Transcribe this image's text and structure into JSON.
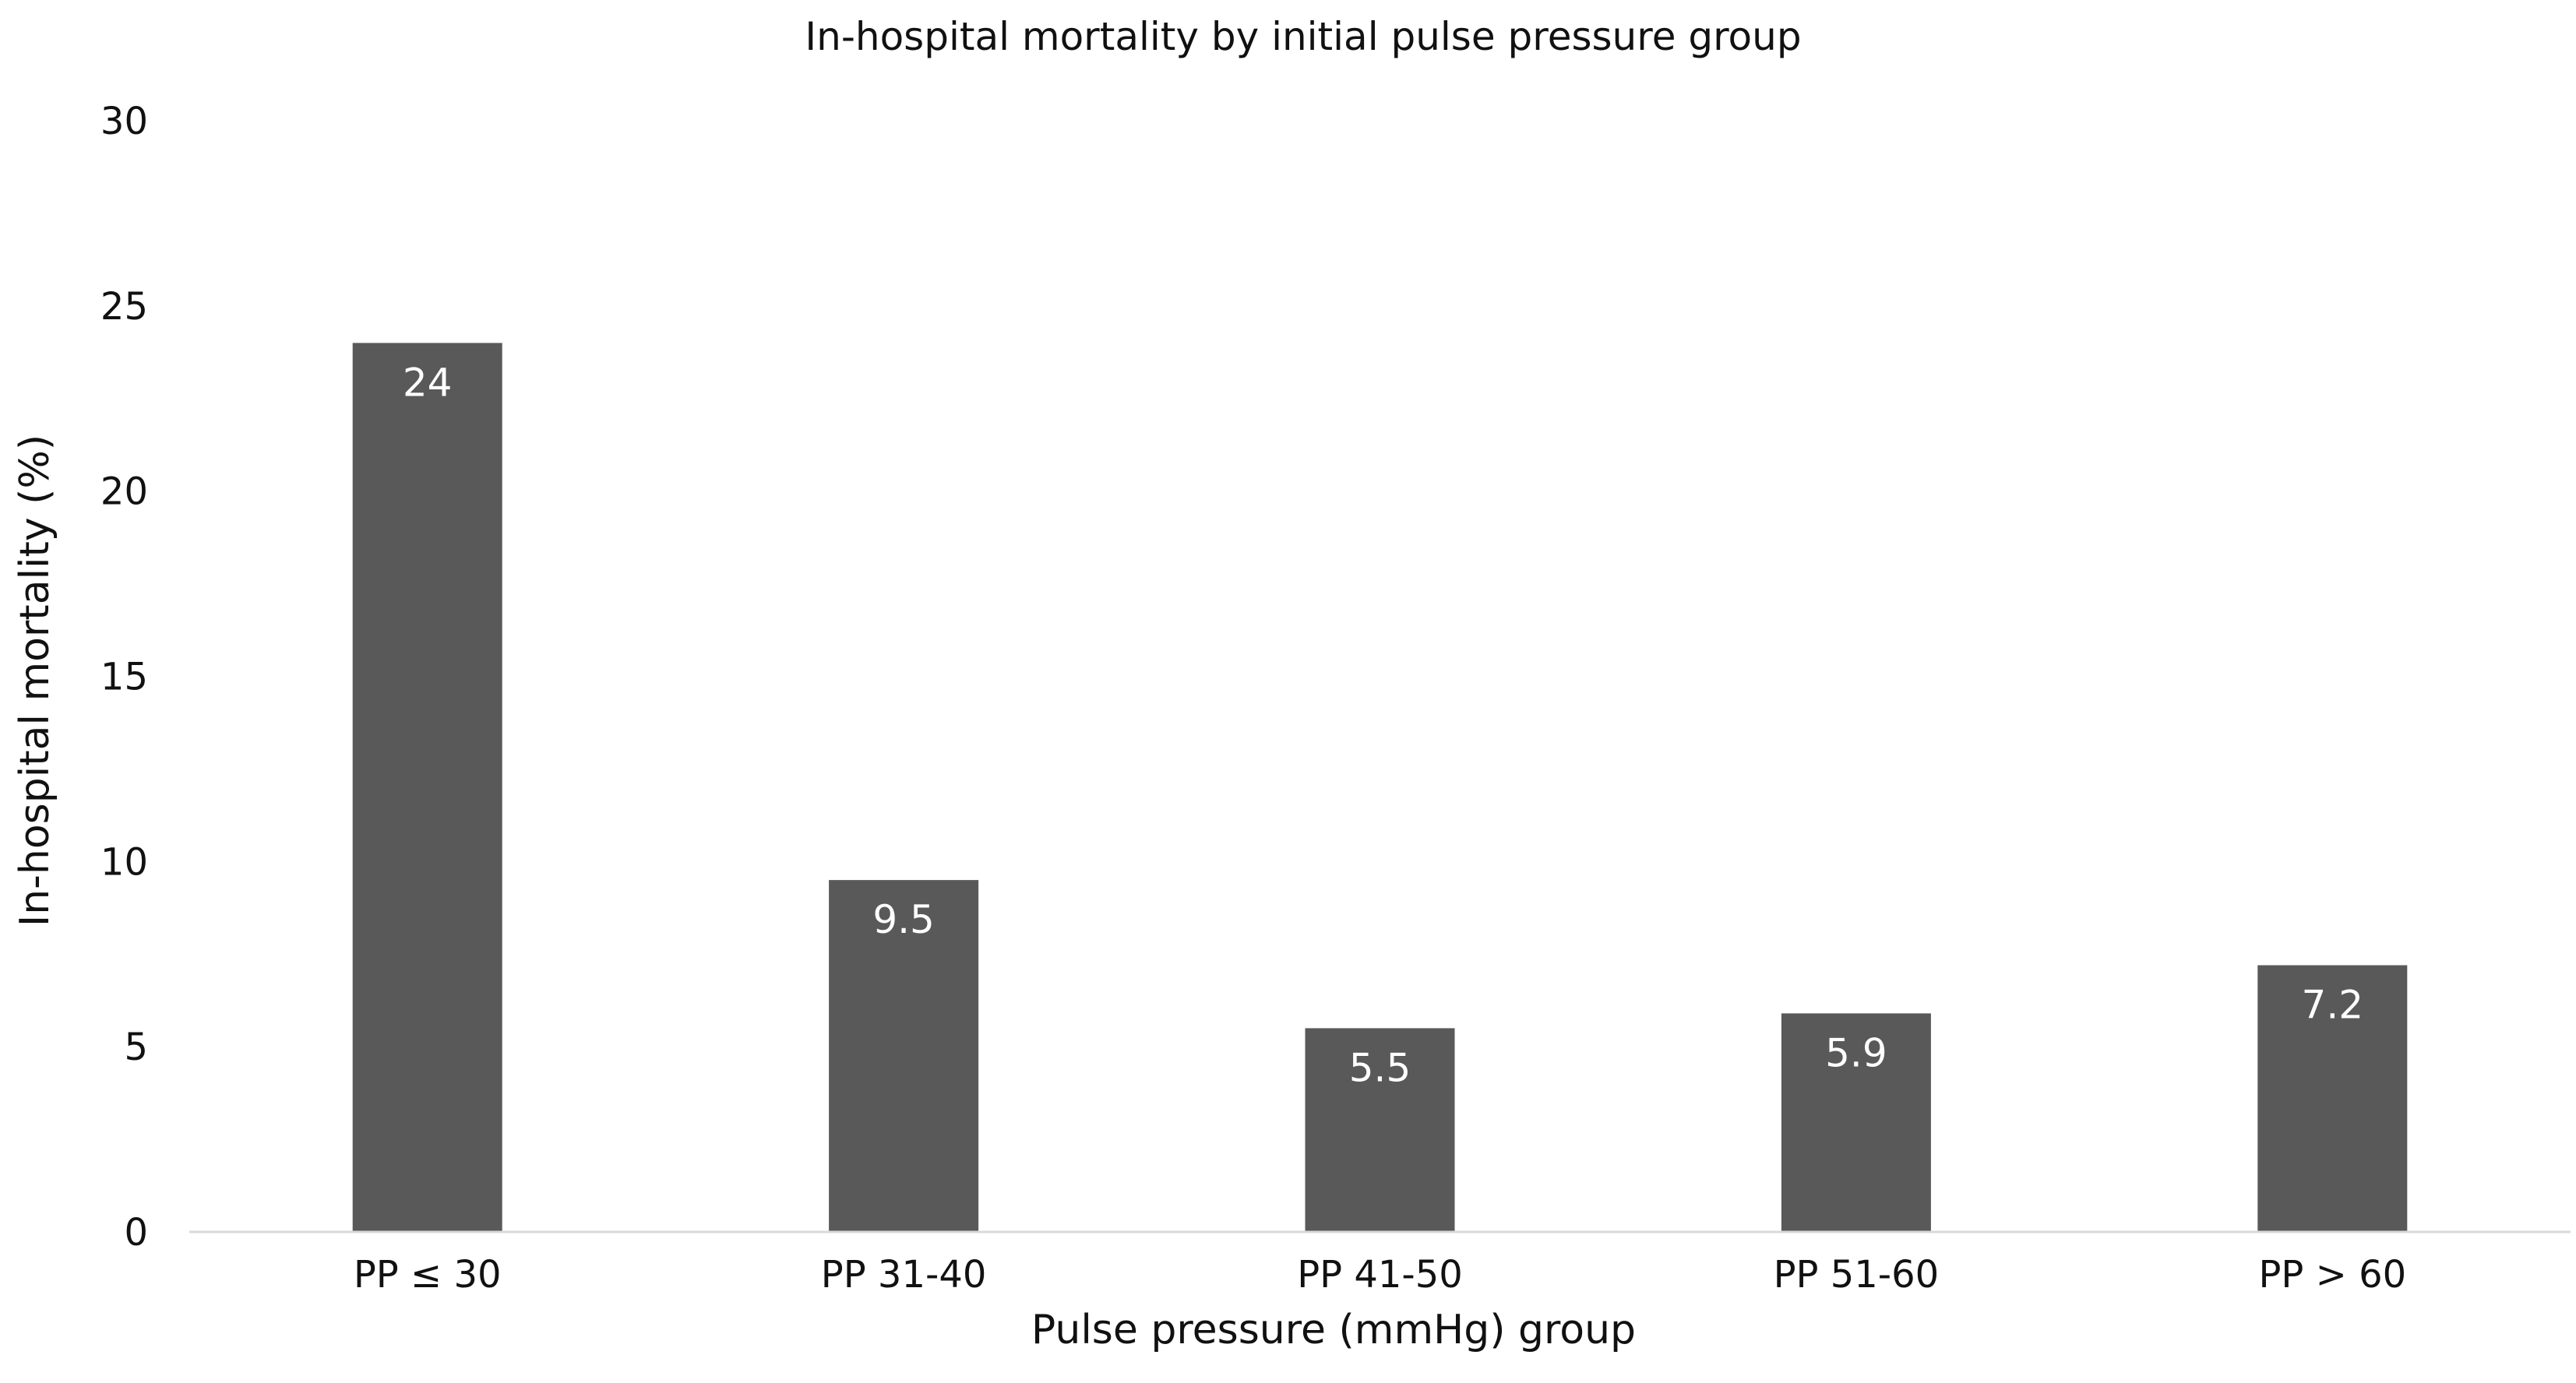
{
  "chart_data": {
    "type": "bar",
    "title": "In-hospital mortality by initial pulse pressure group",
    "xlabel": "Pulse pressure (mmHg) group",
    "ylabel": "In-hospital mortality (%)",
    "categories": [
      "PP ≤ 30",
      "PP 31-40",
      "PP 41-50",
      "PP 51-60",
      "PP > 60"
    ],
    "values": [
      24,
      9.5,
      5.5,
      5.9,
      7.2
    ],
    "value_labels": [
      "24",
      "9.5",
      "5.5",
      "5.9",
      "7.2"
    ],
    "ylim": [
      0,
      30
    ],
    "yticks": [
      "0",
      "5",
      "10",
      "15",
      "20",
      "25",
      "30"
    ],
    "grid": false,
    "legend": "none",
    "colors": {
      "bar": "#595959",
      "axis": "#d9d9d9",
      "bar_label": "#ffffff"
    }
  }
}
